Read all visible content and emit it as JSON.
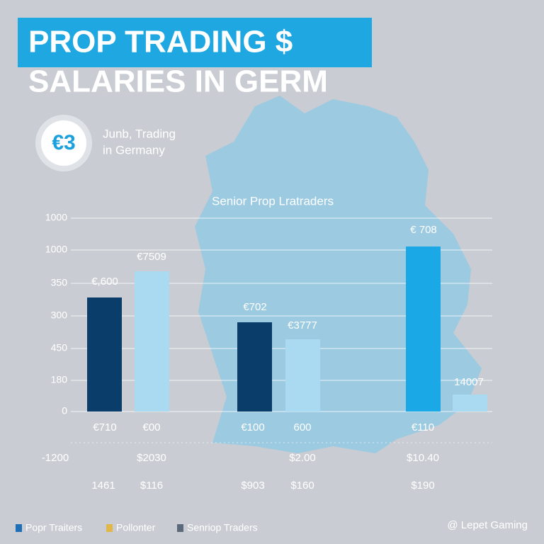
{
  "header": {
    "title": "PROP TRADING $",
    "subtitle": "SALARIES IN GERM"
  },
  "badge": {
    "icon": "€3",
    "lines": [
      "Junb, Trading",
      "in Germany"
    ]
  },
  "chart_title": "Senior Prop Lratraders",
  "y_labels": [
    "1000",
    "1000",
    "350",
    "300",
    "450",
    "180",
    "0"
  ],
  "bars": [
    {
      "label": "€,600"
    },
    {
      "label": "€7509"
    },
    {
      "label": "€702"
    },
    {
      "label": "€3777"
    },
    {
      "label": "€ 708"
    },
    {
      "label": "14007"
    }
  ],
  "rows": [
    [
      "€710",
      "€00",
      "€100",
      "600",
      "€110"
    ],
    [
      "-1200",
      "$2030",
      "$2.00",
      "$10.40"
    ],
    [
      "1461",
      "$116",
      "$903",
      "$160",
      "$190"
    ]
  ],
  "legend": [
    "Popr Traiters",
    "Pollonter",
    "Senriop Traders"
  ],
  "credit": "@ Lepet Gaming"
}
